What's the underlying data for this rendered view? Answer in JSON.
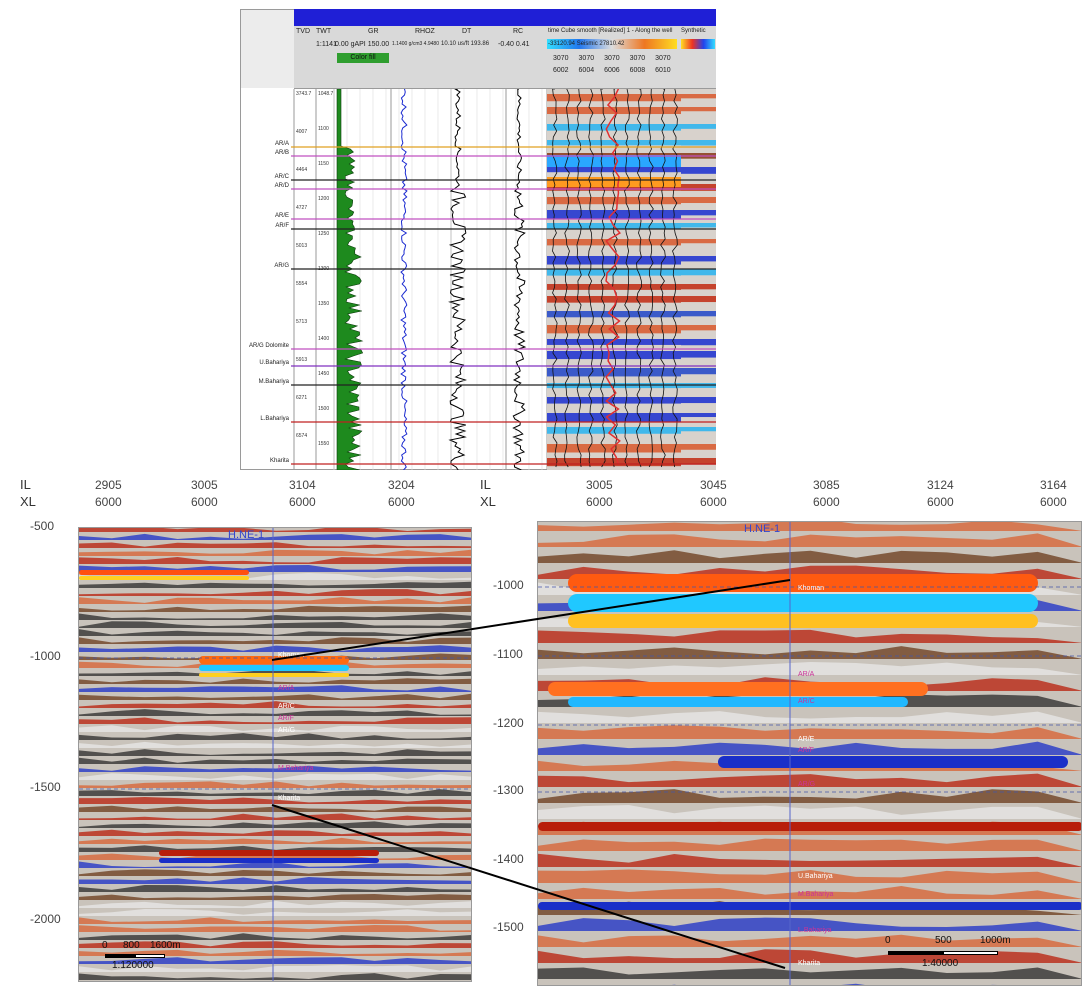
{
  "well_panel": {
    "tracks": [
      {
        "name": "TVD",
        "range": ""
      },
      {
        "name": "TWT",
        "range": "1:1141"
      },
      {
        "name": "GR",
        "range": "0.00 gAPI 150.00"
      },
      {
        "name": "RHOZ",
        "range": "1.1400 g/cm3 4.9480"
      },
      {
        "name": "DT",
        "range": "10.10 us/ft 193.86"
      },
      {
        "name": "RC",
        "range": "-0.40    0.41"
      },
      {
        "name": "time Cube smooth [Realized] 1 - Along the well",
        "range": "-33120.94    Seismic    27810.42"
      },
      {
        "name": "Synthetic",
        "range": ""
      }
    ],
    "green_tag": "Color fill",
    "trace_labels_top": [
      "3070",
      "3070",
      "3070",
      "3070",
      "3070"
    ],
    "trace_labels_bottom": [
      "6002",
      "6004",
      "6006",
      "6008",
      "6010"
    ],
    "tvd_values": [
      "3743.7",
      "4007",
      "4464",
      "4727",
      "5013",
      "5554",
      "5713",
      "5913",
      "6271",
      "6574"
    ],
    "twt_values": [
      "1048.7",
      "1100",
      "1150",
      "1200",
      "1250",
      "1300",
      "1350",
      "1400",
      "1450",
      "1500",
      "1550"
    ],
    "horizons": [
      {
        "name": "AR/A",
        "color": "#e0a020"
      },
      {
        "name": "AR/B",
        "color": "#c050c0"
      },
      {
        "name": "AR/C",
        "color": "#222222"
      },
      {
        "name": "AR/D",
        "color": "#c050c0"
      },
      {
        "name": "AR/E",
        "color": "#c050c0"
      },
      {
        "name": "AR/F",
        "color": "#222222"
      },
      {
        "name": "AR/G",
        "color": "#222222"
      },
      {
        "name": "AR/G Dolomite",
        "color": "#c050c0"
      },
      {
        "name": "U.Bahariya",
        "color": "#8030c0"
      },
      {
        "name": "M.Bahariya",
        "color": "#222222"
      },
      {
        "name": "L.Bahariya",
        "color": "#c02020"
      },
      {
        "name": "Kharita",
        "color": "#c02020"
      }
    ]
  },
  "left_section": {
    "il_label": "IL",
    "xl_label": "XL",
    "il_ticks": [
      "2905",
      "3005",
      "3104",
      "3204"
    ],
    "xl_ticks": [
      "6000",
      "6000",
      "6000",
      "6000"
    ],
    "y_ticks": [
      "-500",
      "-1000",
      "-1500",
      "-2000"
    ],
    "well_name": "H.NE-1",
    "markers": [
      "Khoman",
      "AR/A",
      "AR/C",
      "AR/F",
      "AR/G",
      "M.Bahariya",
      "Kharita"
    ],
    "scale_labels": [
      "0",
      "800",
      "1600m"
    ],
    "scale_ratio": "1:120000"
  },
  "right_section": {
    "il_label": "IL",
    "xl_label": "XL",
    "il_ticks": [
      "3005",
      "3045",
      "3085",
      "3124",
      "3164"
    ],
    "xl_ticks": [
      "6000",
      "6000",
      "6000",
      "6000",
      "6000"
    ],
    "y_ticks": [
      "-1000",
      "-1100",
      "-1200",
      "-1300",
      "-1400",
      "-1500"
    ],
    "well_name": "H.NE-1",
    "markers": [
      "Khoman",
      "AR/A",
      "AR/C",
      "AR/E",
      "AR/F",
      "AR/G",
      "U.Bahariya",
      "M.Bahariya",
      "L.Bahariya",
      "Kharita"
    ],
    "scale_labels": [
      "0",
      "500",
      "1000m"
    ],
    "scale_ratio": "1:40000"
  }
}
